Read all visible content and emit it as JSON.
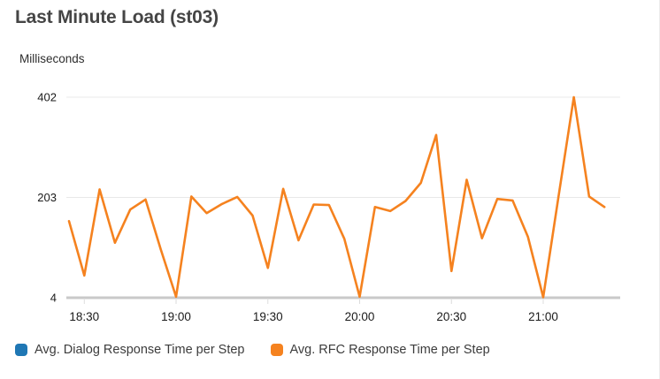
{
  "header": {
    "title": "Last Minute Load (st03)",
    "y_unit_label": "Milliseconds"
  },
  "colors": {
    "dialog_series": "#1f77b4",
    "rfc_series": "#f5821f",
    "gridline": "#e8e8e8",
    "axis_line": "#c9c9c9",
    "tick_mark": "#dcdcdc",
    "tick_label": "#1a1a1a"
  },
  "legend": {
    "items": [
      {
        "label": "Avg. Dialog Response Time per Step",
        "color": "#1f77b4"
      },
      {
        "label": "Avg. RFC Response Time per Step",
        "color": "#f5821f"
      }
    ]
  },
  "chart_data": {
    "type": "line",
    "title": "Last Minute Load (st03)",
    "ylabel": "Milliseconds",
    "xlabel": "",
    "ylim": [
      4,
      402
    ],
    "y_ticks": [
      4,
      203,
      402
    ],
    "x_ticks": [
      "18:30",
      "19:00",
      "19:30",
      "20:00",
      "20:30",
      "21:00"
    ],
    "x_range": [
      "18:25",
      "21:25"
    ],
    "grid": "horizontal",
    "legend_position": "bottom",
    "series": [
      {
        "name": "Avg. Dialog Response Time per Step",
        "color": "#1f77b4",
        "x": [],
        "values": []
      },
      {
        "name": "Avg. RFC Response Time per Step",
        "color": "#f5821f",
        "x": [
          "18:25",
          "18:30",
          "18:35",
          "18:40",
          "18:45",
          "18:50",
          "18:55",
          "19:00",
          "19:05",
          "19:10",
          "19:15",
          "19:20",
          "19:25",
          "19:30",
          "19:35",
          "19:40",
          "19:45",
          "19:50",
          "19:55",
          "20:00",
          "20:05",
          "20:10",
          "20:15",
          "20:20",
          "20:25",
          "20:30",
          "20:35",
          "20:40",
          "20:45",
          "20:50",
          "20:55",
          "21:00",
          "21:05",
          "21:10",
          "21:15",
          "21:20"
        ],
        "values": [
          156,
          48,
          219,
          113,
          179,
          199,
          100,
          6,
          205,
          172,
          190,
          204,
          167,
          63,
          220,
          118,
          189,
          188,
          121,
          6,
          184,
          176,
          196,
          232,
          327,
          57,
          238,
          122,
          200,
          197,
          125,
          5,
          205,
          402,
          205,
          184
        ]
      }
    ]
  }
}
